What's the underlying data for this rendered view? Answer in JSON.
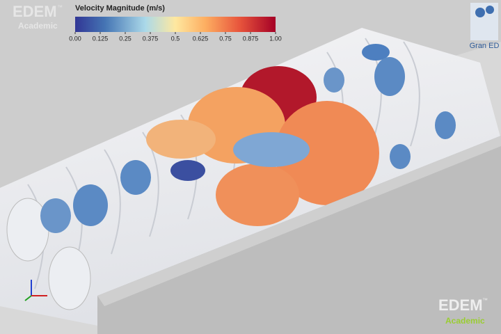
{
  "colorbar": {
    "title": "Velocity Magnitude (m/s)",
    "range": [
      0,
      1
    ],
    "ticks": [
      {
        "value": 0,
        "label": "0.00"
      },
      0.125,
      0.25,
      0.375,
      0.5,
      0.625,
      0.75,
      0.875,
      {
        "value": 1,
        "label": "1.00"
      }
    ]
  },
  "logos": {
    "top_left": {
      "brand": "EDEM",
      "mark": "™",
      "edition": "Academic"
    },
    "top_right": {
      "name": "Gran ED"
    },
    "bottom_right": {
      "brand": "EDEM",
      "mark": "™",
      "edition": "Academic"
    }
  }
}
